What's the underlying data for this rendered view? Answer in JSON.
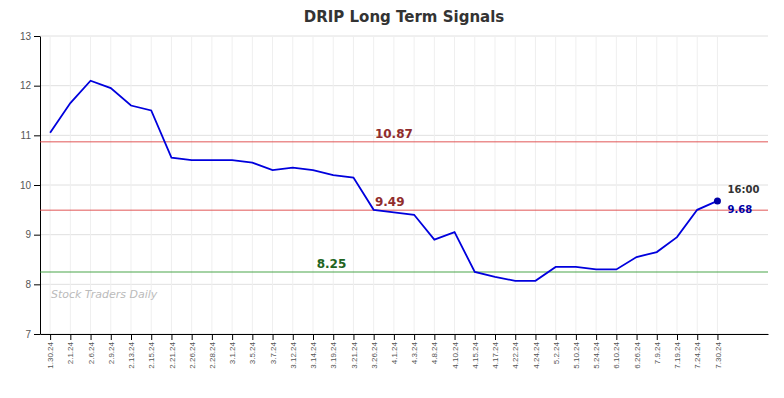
{
  "chart_data": {
    "type": "line",
    "title": "DRIP Long Term Signals",
    "categories": [
      "1.30.24",
      "2.1.24",
      "2.6.24",
      "2.9.24",
      "2.13.24",
      "2.15.24",
      "2.21.24",
      "2.26.24",
      "2.28.24",
      "3.1.24",
      "3.5.24",
      "3.7.24",
      "3.12.24",
      "3.14.24",
      "3.19.24",
      "3.21.24",
      "3.26.24",
      "4.1.24",
      "4.3.24",
      "4.8.24",
      "4.10.24",
      "4.15.24",
      "4.17.24",
      "4.22.24",
      "4.24.24",
      "5.2.24",
      "5.10.24",
      "5.24.24",
      "6.10.24",
      "6.26.24",
      "7.9.24",
      "7.19.24",
      "7.24.24",
      "7.30.24"
    ],
    "values": [
      11.05,
      11.65,
      12.1,
      11.95,
      11.6,
      11.5,
      10.55,
      10.5,
      10.5,
      10.5,
      10.45,
      10.3,
      10.35,
      10.3,
      10.2,
      10.15,
      9.5,
      9.45,
      9.4,
      8.9,
      9.05,
      8.25,
      8.15,
      8.07,
      8.07,
      8.35,
      8.35,
      8.3,
      8.3,
      8.55,
      8.65,
      8.95,
      9.5,
      9.68
    ],
    "color": "#0000dd",
    "ylim": [
      7,
      13
    ],
    "yticks": [
      7,
      8,
      9,
      10,
      11,
      12,
      13
    ],
    "grid": true,
    "reference_lines": [
      {
        "value": 10.87,
        "label": "10.87",
        "color": "#dd4444"
      },
      {
        "value": 9.49,
        "label": "9.49",
        "color": "#dd4444"
      },
      {
        "value": 8.25,
        "label": "8.25",
        "color": "#339933"
      }
    ],
    "annotations": [
      {
        "text": "16:00",
        "x": "7.30.24",
        "value": 9.68
      },
      {
        "text": "9.68",
        "x": "7.30.24",
        "value": 9.68
      }
    ],
    "watermark": "Stock Traders Daily"
  }
}
